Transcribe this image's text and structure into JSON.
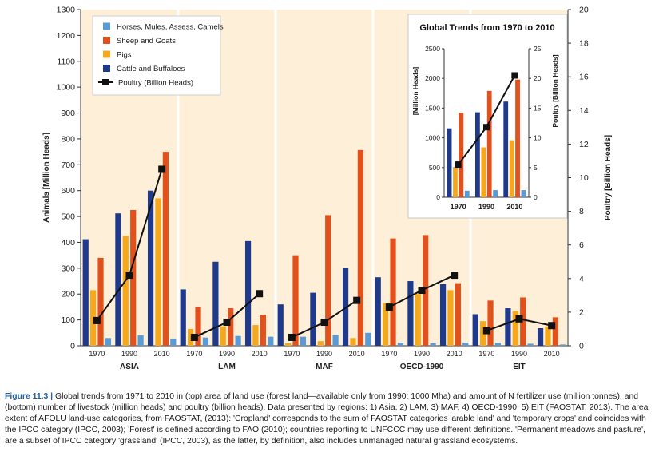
{
  "chart_data": [
    {
      "type": "bar",
      "left_axis_label": "Animals [Million Heads]",
      "right_axis_label": "Poultry [Billion Heads]",
      "left_ylim": [
        0,
        1300
      ],
      "left_ticks": [
        0,
        100,
        200,
        300,
        400,
        500,
        600,
        700,
        800,
        900,
        1000,
        1100,
        1200,
        1300
      ],
      "right_ylim": [
        0,
        20
      ],
      "right_ticks": [
        0,
        2,
        4,
        6,
        8,
        10,
        12,
        14,
        16,
        18,
        20
      ],
      "years": [
        "1970",
        "1990",
        "2010"
      ],
      "region_colors": [
        "#fdefd8",
        "#fdefd8",
        "#fdefd8",
        "#fdefd8",
        "#fdefd8"
      ],
      "series_colors": {
        "cattle": "#1f3a8a",
        "pigs": "#f6a81c",
        "sheep": "#e2501c",
        "horses": "#5b9bd5",
        "poultry": "#111111"
      },
      "legend": {
        "position": "top-left",
        "items": [
          {
            "key": "horses",
            "label": "Horses, Mules, Assess, Camels"
          },
          {
            "key": "sheep",
            "label": "Sheep and Goats"
          },
          {
            "key": "pigs",
            "label": "Pigs"
          },
          {
            "key": "cattle",
            "label": "Cattle and Buffaloes"
          },
          {
            "key": "poultry",
            "label": "Poultry (Billion Heads)"
          }
        ]
      },
      "regions": [
        {
          "name": "ASIA",
          "cattle": [
            412,
            512,
            600
          ],
          "pigs": [
            215,
            425,
            570
          ],
          "sheep": [
            340,
            525,
            750
          ],
          "horses": [
            30,
            40,
            28
          ],
          "poultry": [
            1.5,
            4.2,
            10.5
          ]
        },
        {
          "name": "LAM",
          "cattle": [
            218,
            325,
            405
          ],
          "pigs": [
            65,
            75,
            80
          ],
          "sheep": [
            150,
            145,
            120
          ],
          "horses": [
            32,
            38,
            35
          ],
          "poultry": [
            0.5,
            1.4,
            3.1
          ]
        },
        {
          "name": "MAF",
          "cattle": [
            160,
            205,
            300
          ],
          "pigs": [
            10,
            18,
            30
          ],
          "sheep": [
            350,
            505,
            757
          ],
          "horses": [
            35,
            42,
            50
          ],
          "poultry": [
            0.5,
            1.4,
            2.7
          ]
        },
        {
          "name": "OECD-1990",
          "cattle": [
            265,
            250,
            238
          ],
          "pigs": [
            165,
            200,
            215
          ],
          "sheep": [
            415,
            428,
            242
          ],
          "horses": [
            12,
            10,
            12
          ],
          "poultry": [
            2.3,
            3.3,
            4.2
          ]
        },
        {
          "name": "EIT",
          "cattle": [
            122,
            145,
            68
          ],
          "pigs": [
            95,
            135,
            75
          ],
          "sheep": [
            175,
            187,
            110
          ],
          "horses": [
            12,
            8,
            5
          ],
          "poultry": [
            0.9,
            1.6,
            1.2
          ]
        }
      ]
    },
    {
      "type": "bar",
      "title": "Global Trends from 1970 to 2010",
      "left_axis_label": "[Million Heads]",
      "right_axis_label": "Poultry [Billion Heads]",
      "left_ylim": [
        0,
        2500
      ],
      "left_ticks": [
        0,
        500,
        1000,
        1500,
        2000,
        2500
      ],
      "right_ylim": [
        0,
        25
      ],
      "right_ticks": [
        0,
        5,
        10,
        15,
        20,
        25
      ],
      "years": [
        "1970",
        "1990",
        "2010"
      ],
      "cattle": [
        1160,
        1430,
        1610
      ],
      "pigs": [
        510,
        840,
        960
      ],
      "sheep": [
        1420,
        1790,
        1980
      ],
      "horses": [
        110,
        120,
        120
      ],
      "poultry": [
        5.5,
        11.8,
        20.5
      ]
    }
  ],
  "caption": {
    "label": "Figure 11.3 |",
    "text": "Global trends from 1971 to 2010 in (top) area of land use (forest land—available only from 1990; 1000 Mha) and amount of N fertilizer use (million tonnes), and (bottom) number of livestock (million heads) and poultry (billion heads). Data presented by regions: 1) Asia, 2) LAM, 3) MAF, 4) OECD-1990, 5) EIT (FAOSTAT, 2013). The area extent of AFOLU land-use categories, from FAOSTAT, (2013): 'Cropland' corresponds to the sum of FAOSTAT categories 'arable land' and 'temporary crops' and coincides with the IPCC category (IPCC, 2003); 'Forest' is defined according to FAO (2010); countries reporting to UNFCCC may use different definitions. 'Permanent meadows and pasture', are a subset of IPCC category 'grassland' (IPCC, 2003), as the latter, by definition, also includes unmanaged natural grassland ecosystems."
  }
}
